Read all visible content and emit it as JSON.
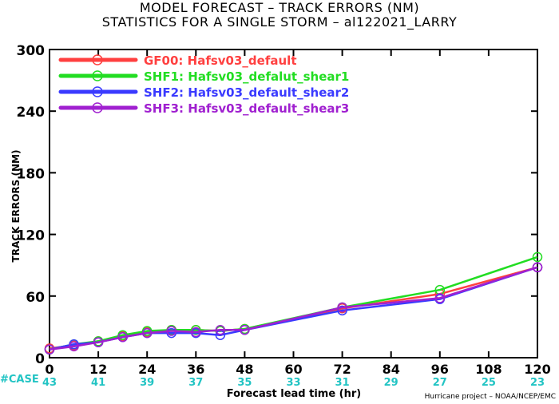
{
  "title_line1": "MODEL FORECAST – TRACK ERRORS (NM)",
  "title_line2": "STATISTICS FOR A SINGLE STORM – al122021_LARRY",
  "case_label": "#CASE",
  "credit": "Hurricane project – NOAA/NCEP/EMC",
  "colors": {
    "case_text": "#22c4c4"
  },
  "chart_data": {
    "type": "line",
    "xlabel": "Forecast lead time (hr)",
    "ylabel": "TRACK ERRORS (NM)",
    "xlim": [
      0,
      120
    ],
    "ylim": [
      0,
      300
    ],
    "x_ticks": [
      0,
      12,
      24,
      36,
      48,
      60,
      72,
      84,
      96,
      108,
      120
    ],
    "y_ticks": [
      0,
      60,
      120,
      180,
      240,
      300
    ],
    "y_tick_labels": [
      "0",
      "60",
      "120",
      "180",
      "240",
      "300"
    ],
    "case_counts": [
      43,
      41,
      39,
      37,
      35,
      33,
      31,
      29,
      27,
      25,
      23
    ],
    "legend_position": "top-left",
    "series": [
      {
        "name": "GF00: Hafsv03_default",
        "color": "#ff4040",
        "x": [
          0,
          6,
          12,
          18,
          24,
          30,
          36,
          42,
          48,
          72,
          96,
          120
        ],
        "y": [
          9,
          12,
          16,
          21,
          25,
          27,
          27,
          26,
          28,
          48,
          62,
          88
        ]
      },
      {
        "name": "SHF1: Hafsv03_defalut_shear1",
        "color": "#22dd22",
        "x": [
          0,
          6,
          12,
          18,
          24,
          30,
          36,
          42,
          48,
          72,
          96,
          120
        ],
        "y": [
          8,
          13,
          16,
          22,
          26,
          27,
          27,
          26,
          28,
          49,
          66,
          98
        ]
      },
      {
        "name": "SHF2: Hafsv03_default_shear2",
        "color": "#3a3aff",
        "x": [
          0,
          6,
          12,
          18,
          24,
          30,
          36,
          42,
          48,
          72,
          96,
          120
        ],
        "y": [
          8,
          13,
          15,
          20,
          24,
          24,
          24,
          22,
          27,
          46,
          57,
          88
        ]
      },
      {
        "name": "SHF3: Hafsv03_default_shear3",
        "color": "#a020d0",
        "x": [
          0,
          6,
          12,
          18,
          24,
          30,
          36,
          42,
          48,
          72,
          96,
          120
        ],
        "y": [
          8,
          11,
          15,
          20,
          24,
          26,
          25,
          27,
          27,
          49,
          58,
          88
        ]
      }
    ]
  }
}
